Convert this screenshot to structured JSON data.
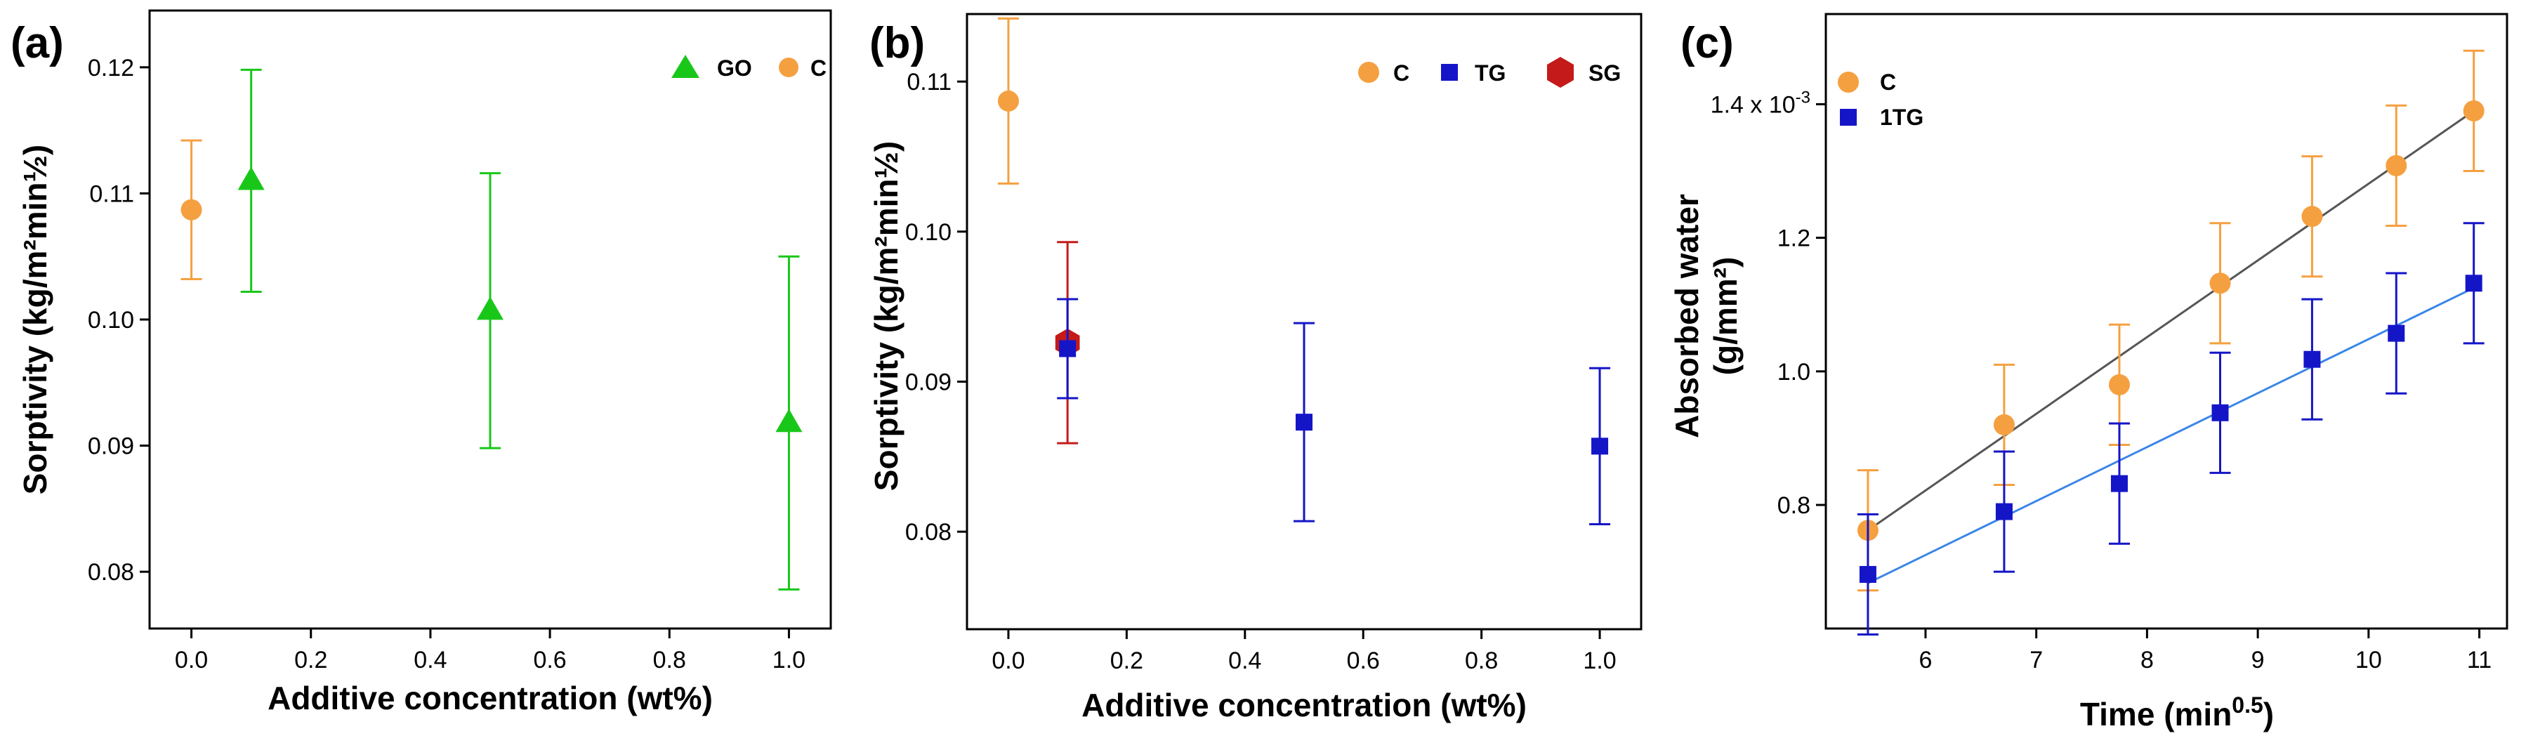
{
  "chart_data": [
    {
      "type": "scatter",
      "panel": "(a)",
      "xlabel": "Additive concentration (wt%)",
      "ylabel": "Sorptivity (kg/m²min½)",
      "xlim": [
        -0.07,
        1.07
      ],
      "ylim": [
        0.0755,
        0.1245
      ],
      "xticks": [
        0.0,
        0.2,
        0.4,
        0.6,
        0.8,
        1.0
      ],
      "xtick_labels": [
        "0.0",
        "0.2",
        "0.4",
        "0.6",
        "0.8",
        "1.0"
      ],
      "yticks": [
        0.08,
        0.09,
        0.1,
        0.11,
        0.12
      ],
      "ytick_labels": [
        "0.08",
        "0.09",
        "0.10",
        "0.11",
        "0.12"
      ],
      "legend": [
        "GO",
        "C"
      ],
      "series": [
        {
          "name": "C",
          "color": "#F5A040",
          "marker": "circle",
          "points": [
            {
              "x": 0.0,
              "y": 0.1087,
              "err": 0.0055
            }
          ]
        },
        {
          "name": "GO",
          "color": "#19C719",
          "marker": "triangle",
          "points": [
            {
              "x": 0.1,
              "y": 0.111,
              "err": 0.0088
            },
            {
              "x": 0.5,
              "y": 0.1007,
              "err": 0.0109
            },
            {
              "x": 1.0,
              "y": 0.0918,
              "err": 0.0132
            }
          ]
        }
      ]
    },
    {
      "type": "scatter",
      "panel": "(b)",
      "xlabel": "Additive concentration (wt%)",
      "ylabel": "Sorptivity (kg/m²min½)",
      "xlim": [
        -0.07,
        1.07
      ],
      "ylim": [
        0.0735,
        0.1145
      ],
      "xticks": [
        0.0,
        0.2,
        0.4,
        0.6,
        0.8,
        1.0
      ],
      "xtick_labels": [
        "0.0",
        "0.2",
        "0.4",
        "0.6",
        "0.8",
        "1.0"
      ],
      "yticks": [
        0.08,
        0.09,
        0.1,
        0.11
      ],
      "ytick_labels": [
        "0.08",
        "0.09",
        "0.10",
        "0.11"
      ],
      "legend": [
        "C",
        "TG",
        "SG"
      ],
      "series": [
        {
          "name": "C",
          "color": "#F5A040",
          "marker": "circle",
          "points": [
            {
              "x": 0.0,
              "y": 0.1087,
              "err": 0.0055
            }
          ]
        },
        {
          "name": "SG",
          "color": "#C41A1A",
          "marker": "hexagon",
          "points": [
            {
              "x": 0.1,
              "y": 0.0926,
              "err": 0.0067
            }
          ]
        },
        {
          "name": "TG",
          "color": "#1515C8",
          "marker": "square",
          "points": [
            {
              "x": 0.1,
              "y": 0.0922,
              "err": 0.0033
            },
            {
              "x": 0.5,
              "y": 0.0873,
              "err": 0.0066
            },
            {
              "x": 1.0,
              "y": 0.0857,
              "err": 0.0052
            }
          ]
        }
      ]
    },
    {
      "type": "scatter",
      "panel": "(c)",
      "xlabel": "Time (min",
      "xlabel_sup": "0.5",
      "xlabel_end": ")",
      "ylabel_line1": "Absorbed water",
      "ylabel_line2": "(g/mm²)",
      "xlim": [
        5.1,
        11.25
      ],
      "ylim": [
        0.615,
        1.535
      ],
      "xticks": [
        6,
        7,
        8,
        9,
        10,
        11
      ],
      "xtick_labels": [
        "6",
        "7",
        "8",
        "9",
        "10",
        "11"
      ],
      "yticks": [
        0.8,
        1.0,
        1.2
      ],
      "ytick_labels": [
        "0.8",
        "1.0",
        "1.2"
      ],
      "top_tick": {
        "value": 1.4,
        "label": "1.4 x 10",
        "exp": "-3"
      },
      "legend": [
        "C",
        "1TG"
      ],
      "series": [
        {
          "name": "C",
          "color": "#F5A040",
          "marker": "circle",
          "fit_color": "#555555",
          "fit": {
            "x0": 5.48,
            "y0": 0.762,
            "x1": 10.95,
            "y1": 1.39
          },
          "points": [
            {
              "x": 5.48,
              "y": 0.762,
              "err": 0.09
            },
            {
              "x": 6.71,
              "y": 0.92,
              "err": 0.09
            },
            {
              "x": 7.75,
              "y": 0.98,
              "err": 0.09
            },
            {
              "x": 8.66,
              "y": 1.132,
              "err": 0.09
            },
            {
              "x": 9.49,
              "y": 1.232,
              "err": 0.09
            },
            {
              "x": 10.25,
              "y": 1.308,
              "err": 0.09
            },
            {
              "x": 10.95,
              "y": 1.39,
              "err": 0.09
            }
          ]
        },
        {
          "name": "1TG",
          "color": "#1515C8",
          "marker": "square",
          "fit_color": "#3A85E8",
          "fit": {
            "x0": 5.48,
            "y0": 0.683,
            "x1": 10.95,
            "y1": 1.125
          },
          "points": [
            {
              "x": 5.48,
              "y": 0.696,
              "err": 0.09
            },
            {
              "x": 6.71,
              "y": 0.79,
              "err": 0.09
            },
            {
              "x": 7.75,
              "y": 0.832,
              "err": 0.09
            },
            {
              "x": 8.66,
              "y": 0.938,
              "err": 0.09
            },
            {
              "x": 9.49,
              "y": 1.018,
              "err": 0.09
            },
            {
              "x": 10.25,
              "y": 1.057,
              "err": 0.09
            },
            {
              "x": 10.95,
              "y": 1.132,
              "err": 0.09
            }
          ]
        }
      ]
    }
  ]
}
